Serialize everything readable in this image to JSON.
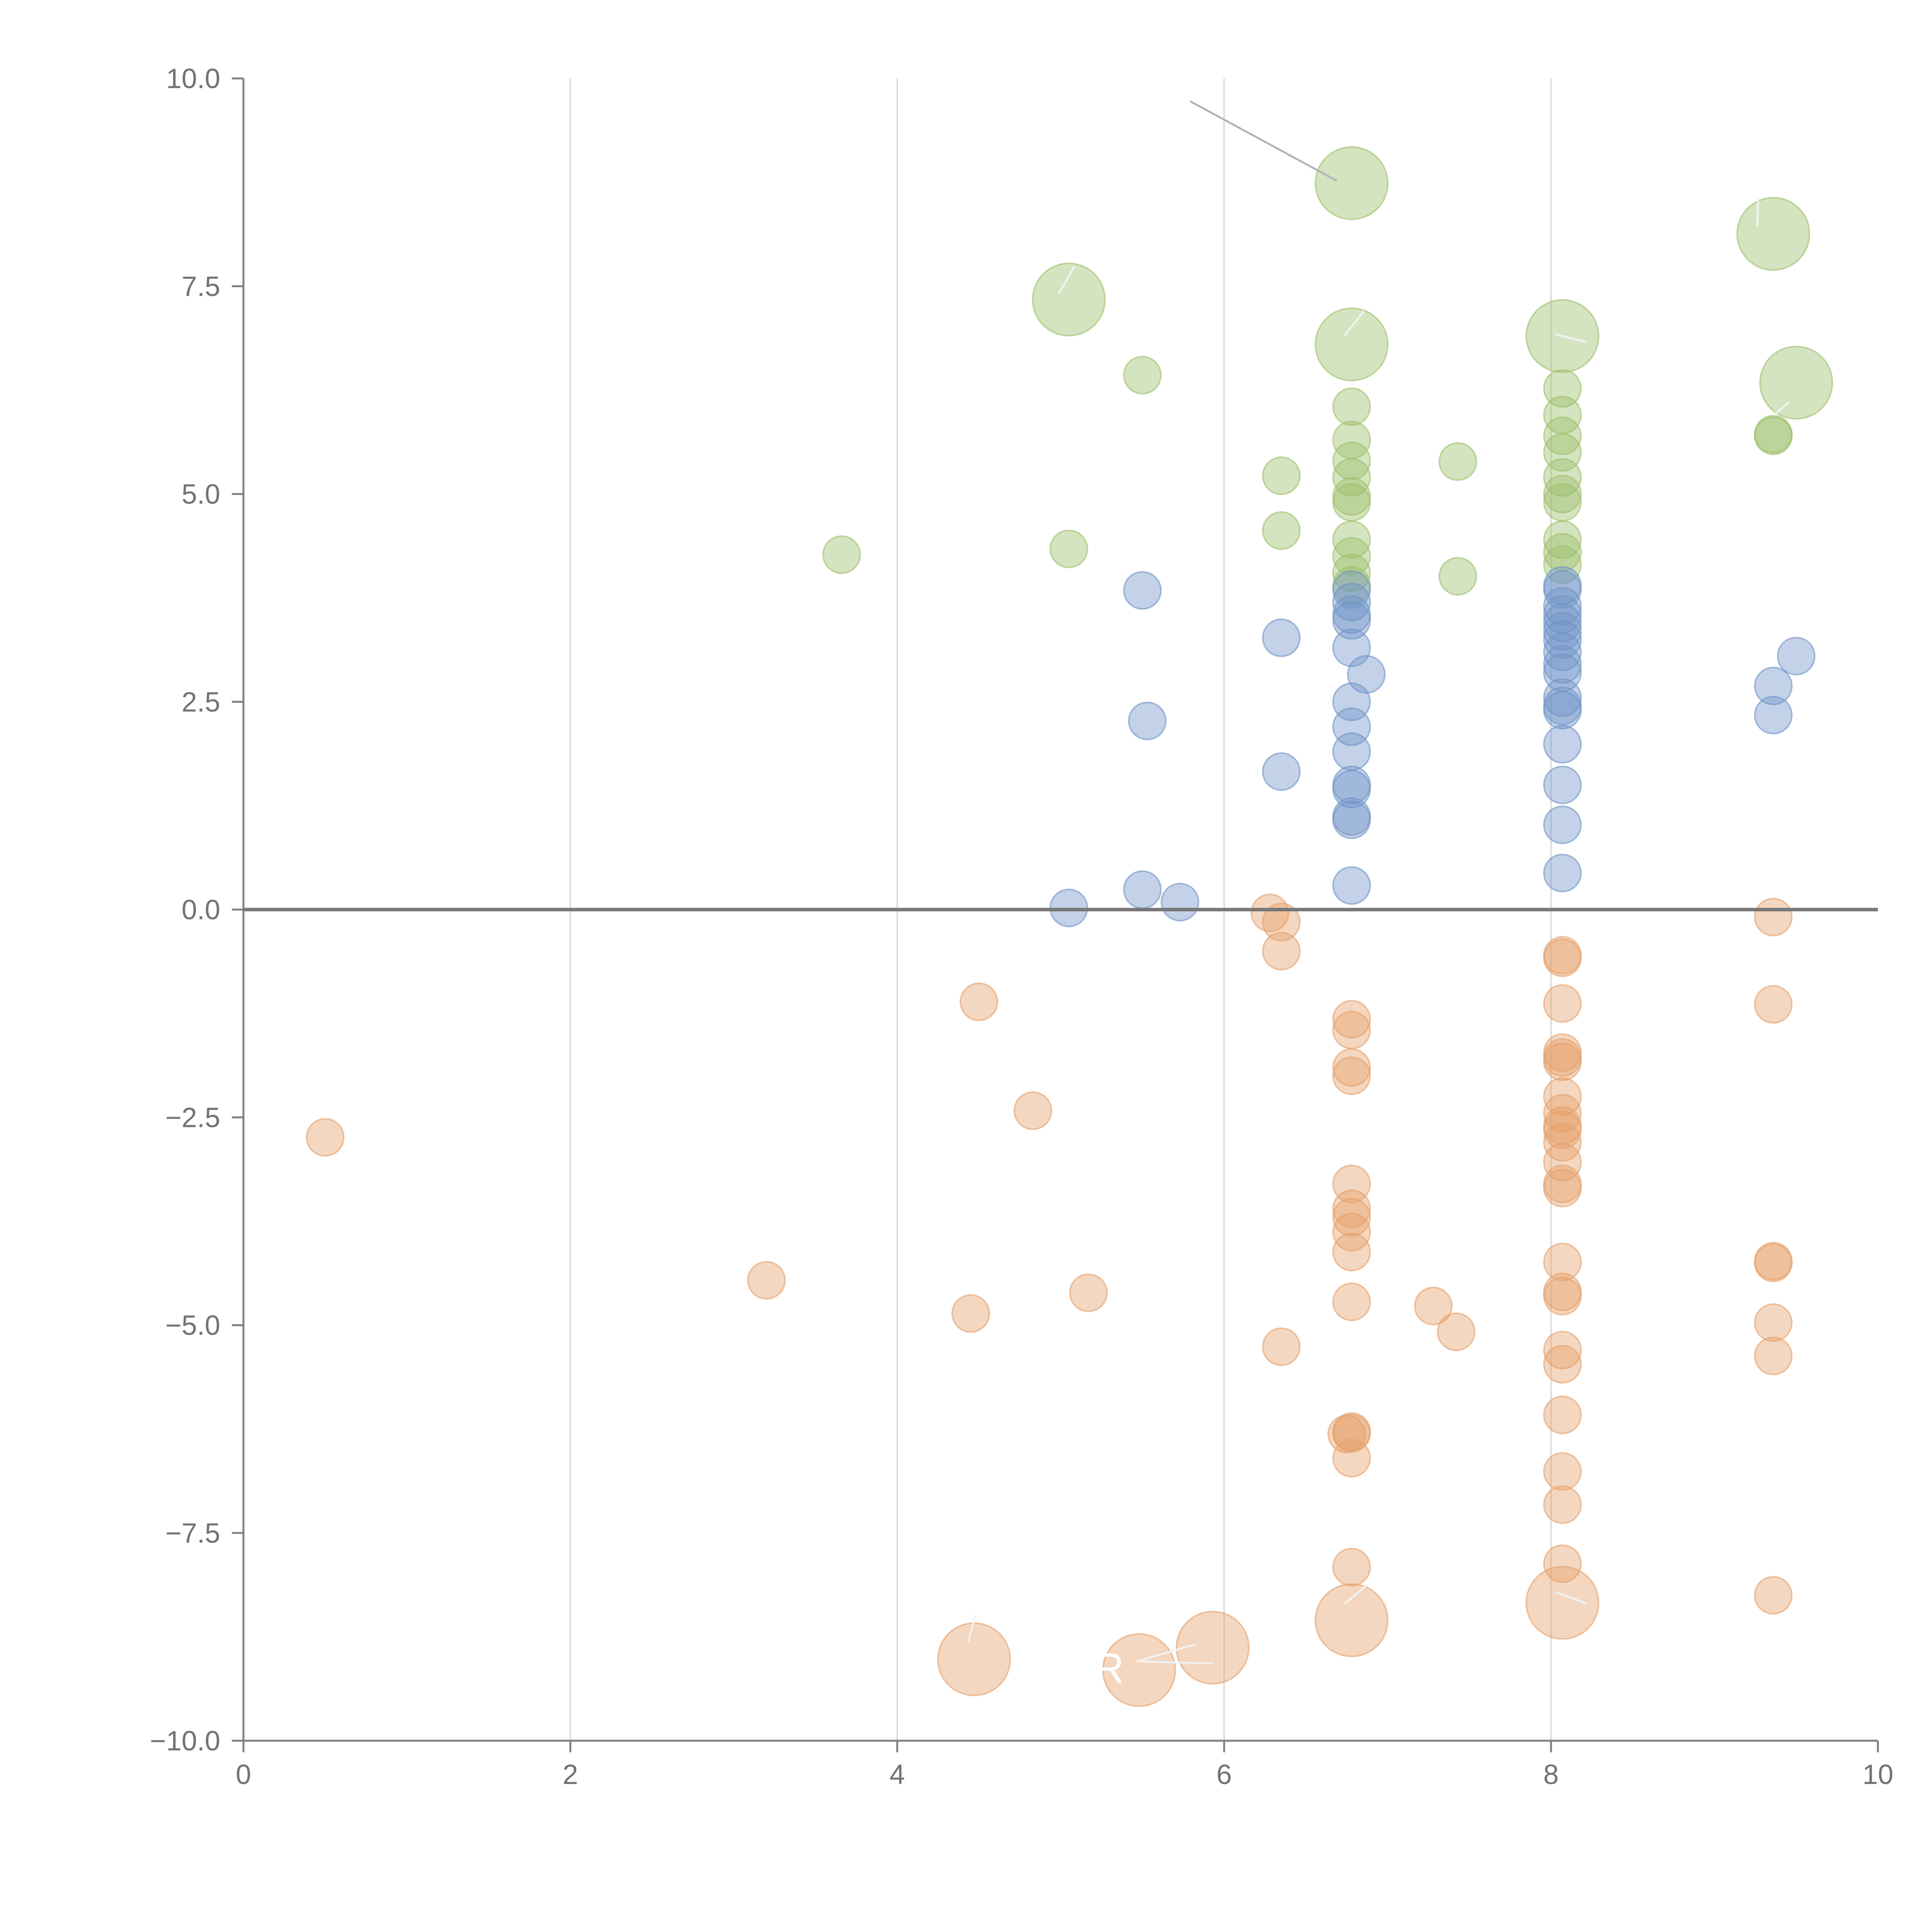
{
  "chart_data": {
    "type": "scatter",
    "title": "",
    "xlabel": "",
    "ylabel": "",
    "xlim": [
      0,
      10
    ],
    "ylim": [
      -10,
      10
    ],
    "x_ticks": [
      "0",
      "2",
      "4",
      "6",
      "8",
      "10"
    ],
    "y_ticks": [
      "10.0",
      "7.5",
      "5.0",
      "2.5",
      "0.0",
      "−2.5",
      "−5.0",
      "−7.5",
      "−10.0"
    ],
    "grid": "vertical only",
    "legend": "none",
    "colors": {
      "green": "#9cbf6a",
      "blue": "#6f93c7",
      "orange": "#e5a06a",
      "axis": "#808080"
    },
    "series": [
      {
        "name": "green",
        "color": "#9cbf6a",
        "points": [
          [
            6.78,
            8.74,
            2.2
          ],
          [
            9.36,
            8.13,
            2.2
          ],
          [
            5.05,
            7.34,
            2.2
          ],
          [
            6.78,
            6.8,
            2.2
          ],
          [
            8.07,
            6.9,
            2.2
          ],
          [
            9.5,
            6.34,
            2.2
          ],
          [
            3.66,
            4.27,
            1
          ],
          [
            5.05,
            4.34,
            1
          ],
          [
            5.5,
            6.43,
            1
          ],
          [
            6.35,
            5.22,
            1
          ],
          [
            6.35,
            4.56,
            1
          ],
          [
            6.78,
            6.05,
            1
          ],
          [
            6.78,
            5.65,
            1
          ],
          [
            6.78,
            5.4,
            1
          ],
          [
            6.78,
            5.2,
            1
          ],
          [
            6.78,
            4.97,
            1
          ],
          [
            6.78,
            4.9,
            1
          ],
          [
            6.78,
            4.45,
            1
          ],
          [
            6.78,
            4.25,
            1
          ],
          [
            6.78,
            4.05,
            1
          ],
          [
            6.78,
            3.9,
            1
          ],
          [
            7.43,
            5.39,
            1
          ],
          [
            7.43,
            4.01,
            1
          ],
          [
            8.07,
            6.27,
            1
          ],
          [
            8.07,
            5.95,
            1
          ],
          [
            8.07,
            5.7,
            1
          ],
          [
            8.07,
            5.5,
            1
          ],
          [
            8.07,
            5.2,
            1
          ],
          [
            8.07,
            5.0,
            1
          ],
          [
            8.07,
            4.9,
            1
          ],
          [
            8.07,
            4.45,
            1
          ],
          [
            8.07,
            4.3,
            1
          ],
          [
            8.07,
            4.15,
            1
          ],
          [
            9.36,
            5.7,
            1
          ],
          [
            9.36,
            5.72,
            1
          ]
        ]
      },
      {
        "name": "blue",
        "color": "#6f93c7",
        "points": [
          [
            5.05,
            0.02,
            1
          ],
          [
            5.5,
            0.24,
            1
          ],
          [
            5.5,
            3.84,
            1
          ],
          [
            5.53,
            2.27,
            1
          ],
          [
            5.73,
            0.09,
            1
          ],
          [
            6.35,
            3.27,
            1
          ],
          [
            6.35,
            1.66,
            1
          ],
          [
            6.78,
            3.85,
            1
          ],
          [
            6.78,
            3.7,
            1
          ],
          [
            6.78,
            3.55,
            1
          ],
          [
            6.78,
            3.48,
            1
          ],
          [
            6.78,
            3.15,
            1
          ],
          [
            6.78,
            2.5,
            1
          ],
          [
            6.78,
            2.2,
            1
          ],
          [
            6.78,
            1.9,
            1
          ],
          [
            6.78,
            1.5,
            1
          ],
          [
            6.78,
            1.45,
            1
          ],
          [
            6.78,
            1.12,
            1
          ],
          [
            6.78,
            1.08,
            1
          ],
          [
            6.78,
            0.29,
            1
          ],
          [
            6.87,
            2.83,
            1
          ],
          [
            8.07,
            3.9,
            1
          ],
          [
            8.07,
            3.85,
            1
          ],
          [
            8.07,
            3.65,
            1
          ],
          [
            8.07,
            3.55,
            1
          ],
          [
            8.07,
            3.45,
            1
          ],
          [
            8.07,
            3.35,
            1
          ],
          [
            8.07,
            3.25,
            1
          ],
          [
            8.07,
            3.1,
            1
          ],
          [
            8.07,
            2.95,
            1
          ],
          [
            8.07,
            2.85,
            1
          ],
          [
            8.07,
            2.55,
            1
          ],
          [
            8.07,
            2.45,
            1
          ],
          [
            8.07,
            2.4,
            1
          ],
          [
            8.07,
            1.99,
            1
          ],
          [
            8.07,
            1.5,
            1
          ],
          [
            8.07,
            1.02,
            1
          ],
          [
            8.07,
            0.44,
            1
          ],
          [
            9.36,
            2.69,
            1
          ],
          [
            9.36,
            2.34,
            1
          ],
          [
            9.5,
            3.05,
            1
          ]
        ]
      },
      {
        "name": "orange",
        "color": "#e5a06a",
        "points": [
          [
            0.5,
            -2.74,
            1
          ],
          [
            3.2,
            -4.46,
            1
          ],
          [
            4.45,
            -4.86,
            1
          ],
          [
            4.5,
            -1.11,
            1
          ],
          [
            4.83,
            -2.42,
            1
          ],
          [
            5.17,
            -4.61,
            1
          ],
          [
            6.28,
            -0.04,
            1
          ],
          [
            6.35,
            -0.15,
            1
          ],
          [
            6.35,
            -0.5,
            1
          ],
          [
            6.35,
            -5.26,
            1
          ],
          [
            6.78,
            -1.32,
            1
          ],
          [
            6.78,
            -1.45,
            1
          ],
          [
            6.78,
            -1.9,
            1
          ],
          [
            6.78,
            -2.0,
            1
          ],
          [
            6.78,
            -3.3,
            1
          ],
          [
            6.78,
            -3.6,
            1
          ],
          [
            6.78,
            -3.7,
            1
          ],
          [
            6.78,
            -3.88,
            1
          ],
          [
            6.78,
            -4.12,
            1
          ],
          [
            6.78,
            -4.72,
            1
          ],
          [
            6.78,
            -6.28,
            1
          ],
          [
            6.78,
            -6.3,
            1
          ],
          [
            6.75,
            -6.31,
            1
          ],
          [
            6.78,
            -6.6,
            1
          ],
          [
            6.78,
            -7.91,
            1
          ],
          [
            7.28,
            -4.77,
            1
          ],
          [
            7.42,
            -5.08,
            1
          ],
          [
            8.07,
            -0.55,
            1
          ],
          [
            8.07,
            -0.58,
            1
          ],
          [
            8.07,
            -1.13,
            1
          ],
          [
            8.07,
            -1.72,
            1
          ],
          [
            8.07,
            -1.78,
            1
          ],
          [
            8.07,
            -1.83,
            1
          ],
          [
            8.07,
            -2.25,
            1
          ],
          [
            8.07,
            -2.45,
            1
          ],
          [
            8.07,
            -2.6,
            1
          ],
          [
            8.07,
            -2.65,
            1
          ],
          [
            8.07,
            -2.8,
            1
          ],
          [
            8.07,
            -3.04,
            1
          ],
          [
            8.07,
            -3.3,
            1
          ],
          [
            8.07,
            -3.35,
            1
          ],
          [
            8.07,
            -4.24,
            1
          ],
          [
            8.07,
            -4.6,
            1
          ],
          [
            8.07,
            -4.65,
            1
          ],
          [
            8.07,
            -5.3,
            1
          ],
          [
            8.07,
            -5.47,
            1
          ],
          [
            8.07,
            -6.08,
            1
          ],
          [
            8.07,
            -6.76,
            1
          ],
          [
            8.07,
            -7.16,
            1
          ],
          [
            8.07,
            -7.87,
            1
          ],
          [
            9.36,
            -0.09,
            1
          ],
          [
            9.36,
            -1.14,
            1
          ],
          [
            9.36,
            -4.23,
            1
          ],
          [
            9.36,
            -4.25,
            1
          ],
          [
            9.36,
            -4.97,
            1
          ],
          [
            9.36,
            -5.37,
            1
          ],
          [
            9.36,
            -8.25,
            1
          ],
          [
            4.47,
            -9.02,
            2.2
          ],
          [
            5.48,
            -9.15,
            2.2
          ],
          [
            5.93,
            -8.88,
            2.2
          ],
          [
            6.78,
            -8.55,
            2.2
          ],
          [
            8.07,
            -8.34,
            2.2
          ]
        ]
      }
    ],
    "labels": [
      {
        "text": "R"
      }
    ]
  }
}
